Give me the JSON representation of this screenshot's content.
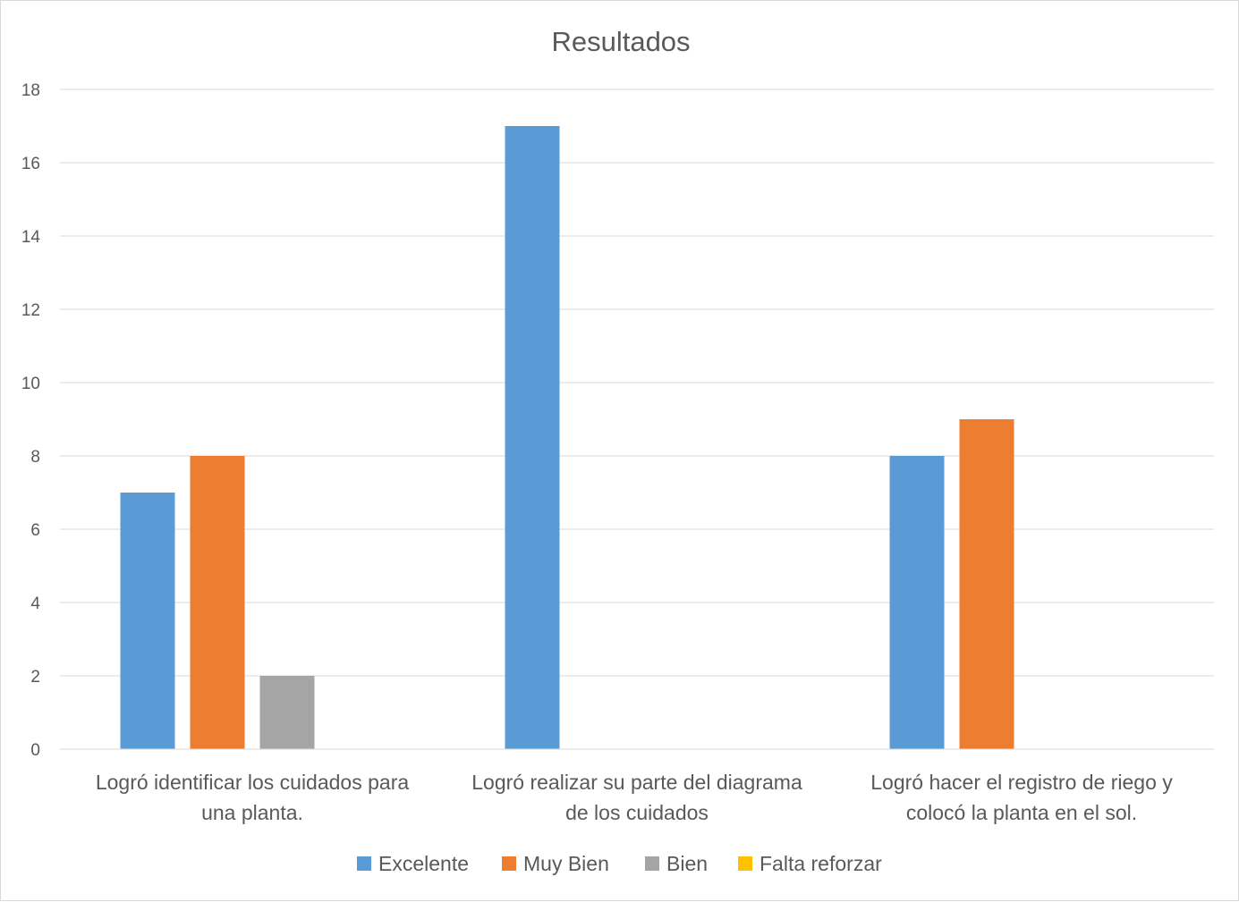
{
  "chart_data": {
    "type": "bar",
    "title": "Resultados",
    "xlabel": "",
    "ylabel": "",
    "ylim": [
      0,
      18
    ],
    "yticks": [
      0,
      2,
      4,
      6,
      8,
      10,
      12,
      14,
      16,
      18
    ],
    "grid": true,
    "legend_position": "bottom",
    "categories": [
      [
        "Logró identificar los cuidados para",
        "una planta."
      ],
      [
        "Logró realizar su parte del diagrama",
        "de los cuidados"
      ],
      [
        "Logró hacer el registro de riego y",
        "colocó la planta en el sol."
      ]
    ],
    "series": [
      {
        "name": "Excelente",
        "color": "#5b9bd5",
        "values": [
          7,
          17,
          8
        ]
      },
      {
        "name": "Muy Bien",
        "color": "#ed7d31",
        "values": [
          8,
          0,
          9
        ]
      },
      {
        "name": "Bien",
        "color": "#a5a5a5",
        "values": [
          2,
          0,
          0
        ]
      },
      {
        "name": "Falta reforzar",
        "color": "#ffc000",
        "values": [
          0,
          0,
          0
        ]
      }
    ]
  }
}
